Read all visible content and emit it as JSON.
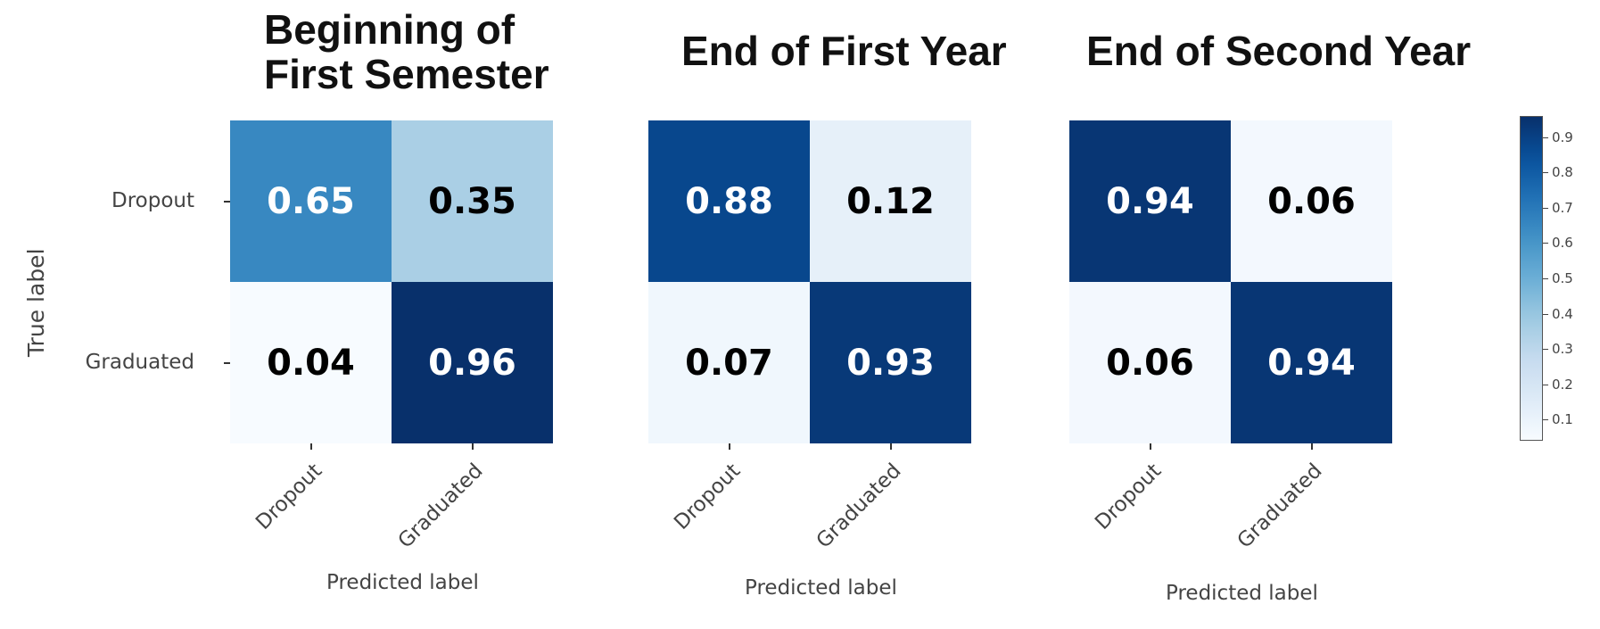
{
  "chart_data": [
    {
      "type": "heatmap",
      "title": [
        "Beginning of",
        "First Semester"
      ],
      "xlabel": "Predicted label",
      "ylabel": "True label",
      "x_categories": [
        "Dropout",
        "Graduated"
      ],
      "y_categories": [
        "Dropout",
        "Graduated"
      ],
      "values": [
        [
          0.65,
          0.35
        ],
        [
          0.04,
          0.96
        ]
      ]
    },
    {
      "type": "heatmap",
      "title": [
        "End of First Year"
      ],
      "xlabel": "Predicted label",
      "ylabel": "",
      "x_categories": [
        "Dropout",
        "Graduated"
      ],
      "y_categories": [],
      "values": [
        [
          0.88,
          0.12
        ],
        [
          0.07,
          0.93
        ]
      ]
    },
    {
      "type": "heatmap",
      "title": [
        "End of Second Year"
      ],
      "xlabel": "Predicted label",
      "ylabel": "",
      "x_categories": [
        "Dropout",
        "Graduated"
      ],
      "y_categories": [],
      "values": [
        [
          0.94,
          0.06
        ],
        [
          0.06,
          0.94
        ]
      ]
    }
  ],
  "colorbar": {
    "colormap": "Blues",
    "range": [
      0.04,
      0.96
    ],
    "ticks": [
      0.1,
      0.2,
      0.3,
      0.4,
      0.5,
      0.6,
      0.7,
      0.8,
      0.9
    ],
    "tick_labels": [
      "0.1",
      "0.2",
      "0.3",
      "0.4",
      "0.5",
      "0.6",
      "0.7",
      "0.8",
      "0.9"
    ]
  }
}
